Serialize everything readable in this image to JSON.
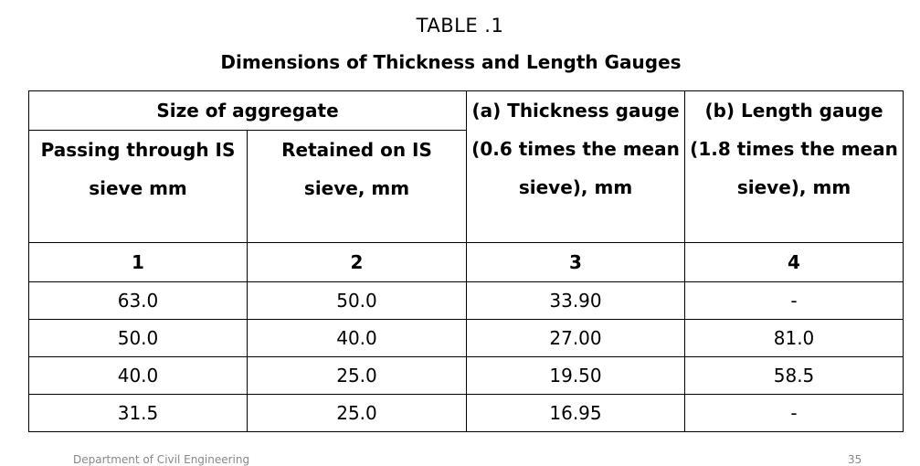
{
  "caption": {
    "title": "TABLE .1",
    "subtitle": "Dimensions of Thickness and Length Gauges"
  },
  "table": {
    "group_header": "Size of aggregate",
    "headers": {
      "passing": "Passing through IS sieve mm",
      "retained": "Retained on IS sieve, mm",
      "thickness": "(a) Thickness gauge (0.6 times the mean sieve), mm",
      "length": "(b) Length gauge (1.8 times the mean sieve), mm"
    },
    "column_numbers": [
      "1",
      "2",
      "3",
      "4"
    ],
    "rows": [
      {
        "passing": "63.0",
        "retained": "50.0",
        "thickness": "33.90",
        "length": "-"
      },
      {
        "passing": "50.0",
        "retained": "40.0",
        "thickness": "27.00",
        "length": "81.0"
      },
      {
        "passing": "40.0",
        "retained": "25.0",
        "thickness": "19.50",
        "length": "58.5"
      },
      {
        "passing": "31.5",
        "retained": "25.0",
        "thickness": "16.95",
        "length": "-"
      }
    ]
  },
  "footer": {
    "left": "Department of Civil Engineering",
    "right": "35"
  }
}
